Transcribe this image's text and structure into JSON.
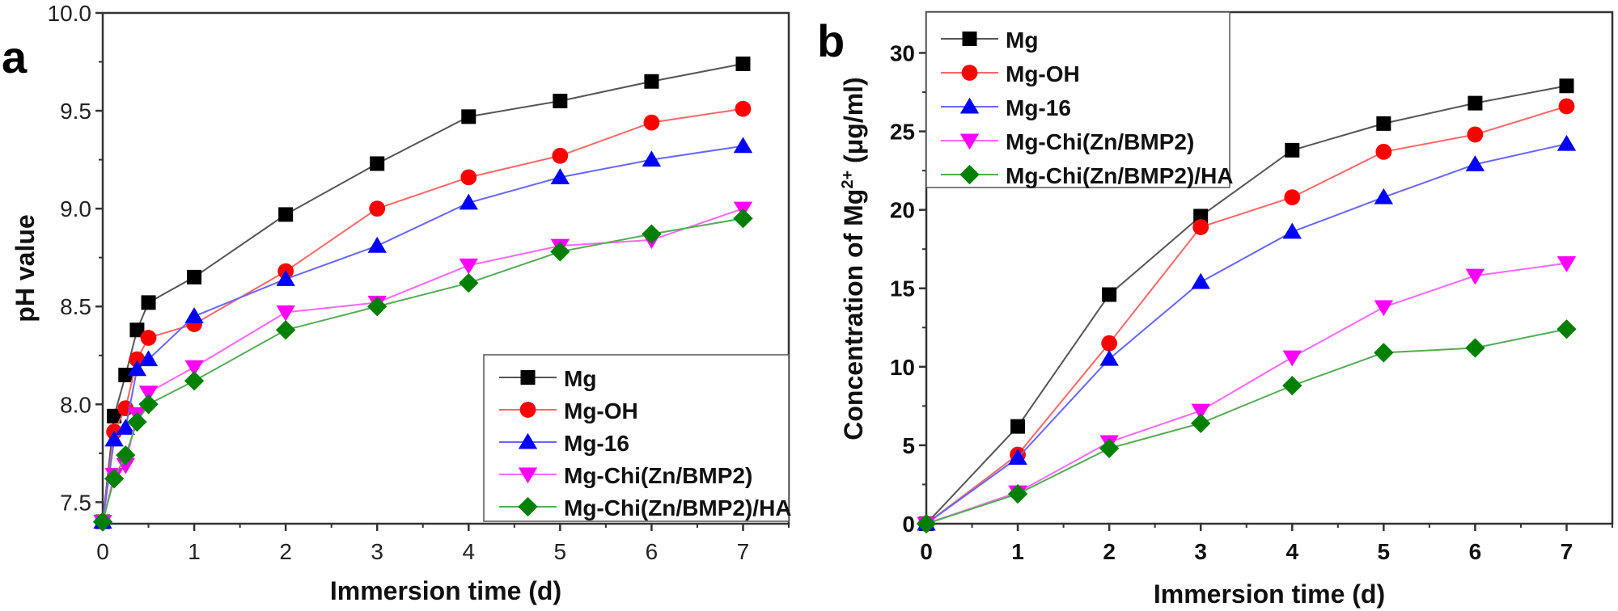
{
  "panels": [
    "a",
    "b"
  ],
  "series_styles": [
    {
      "name": "Mg",
      "line_color": "#555555",
      "marker_color": "#000000",
      "marker": "square"
    },
    {
      "name": "Mg-OH",
      "line_color": "#ff6666",
      "marker_color": "#ff0000",
      "marker": "circle"
    },
    {
      "name": "Mg-16",
      "line_color": "#6666ff",
      "marker_color": "#0000ff",
      "marker": "triangle-up"
    },
    {
      "name": "Mg-Chi(Zn/BMP2)",
      "line_color": "#ff66ff",
      "marker_color": "#ff00ff",
      "marker": "triangle-down"
    },
    {
      "name": "Mg-Chi(Zn/BMP2)/HA",
      "line_color": "#55aa55",
      "marker_color": "#008000",
      "marker": "diamond"
    }
  ],
  "chart_data": [
    {
      "panel_label": "a",
      "type": "line",
      "title": "",
      "xlabel": "Immersion time (d)",
      "ylabel": "pH value",
      "xlim": [
        0,
        7.5
      ],
      "ylim": [
        7.39,
        10.0
      ],
      "xticks": [
        0,
        1,
        2,
        3,
        4,
        5,
        6,
        7
      ],
      "xtick_labels": [
        "0",
        "1",
        "2",
        "3",
        "4",
        "5",
        "6",
        "7"
      ],
      "yticks": [
        7.5,
        8.0,
        8.5,
        9.0,
        9.5,
        10.0
      ],
      "ytick_labels": [
        "7.5",
        "8.0",
        "8.5",
        "9.0",
        "9.5",
        "10.0"
      ],
      "grid": false,
      "legend_position": "bottom-right",
      "x": [
        0,
        0.125,
        0.25,
        0.375,
        0.5,
        1,
        2,
        3,
        4,
        5,
        6,
        7
      ],
      "series": [
        {
          "name": "Mg",
          "values": [
            7.4,
            7.94,
            8.15,
            8.38,
            8.52,
            8.65,
            8.97,
            9.23,
            9.47,
            9.55,
            9.65,
            9.74
          ]
        },
        {
          "name": "Mg-OH",
          "values": [
            7.4,
            7.86,
            7.98,
            8.23,
            8.34,
            8.41,
            8.68,
            9.0,
            9.16,
            9.27,
            9.44,
            9.51
          ]
        },
        {
          "name": "Mg-16",
          "values": [
            7.4,
            7.82,
            7.88,
            8.18,
            8.23,
            8.45,
            8.64,
            8.81,
            9.03,
            9.16,
            9.25,
            9.32
          ]
        },
        {
          "name": "Mg-Chi(Zn/BMP2)",
          "values": [
            7.4,
            7.64,
            7.69,
            7.95,
            8.06,
            8.19,
            8.47,
            8.52,
            8.71,
            8.81,
            8.84,
            9.0
          ]
        },
        {
          "name": "Mg-Chi(Zn/BMP2)/HA",
          "values": [
            7.4,
            7.62,
            7.74,
            7.91,
            8.0,
            8.12,
            8.38,
            8.5,
            8.62,
            8.78,
            8.87,
            8.95
          ]
        }
      ]
    },
    {
      "panel_label": "b",
      "type": "line",
      "title": "",
      "xlabel": "Immersion time (d)",
      "ylabel": "Concentration of Mg",
      "ylabel_superscript": "2+",
      "ylabel_unit": " (μg/ml)",
      "xlim": [
        0,
        7.5
      ],
      "ylim": [
        0,
        32.6
      ],
      "xticks": [
        0,
        1,
        2,
        3,
        4,
        5,
        6,
        7
      ],
      "xtick_labels": [
        "0",
        "1",
        "2",
        "3",
        "4",
        "5",
        "6",
        "7"
      ],
      "yticks": [
        0,
        5,
        10,
        15,
        20,
        25,
        30
      ],
      "ytick_labels": [
        "0",
        "5",
        "10",
        "15",
        "20",
        "25",
        "30"
      ],
      "grid": false,
      "legend_position": "top-left",
      "x": [
        0,
        1,
        2,
        3,
        4,
        5,
        6,
        7
      ],
      "series": [
        {
          "name": "Mg",
          "values": [
            0,
            6.2,
            14.6,
            19.6,
            23.8,
            25.5,
            26.8,
            27.9
          ]
        },
        {
          "name": "Mg-OH",
          "values": [
            0,
            4.4,
            11.5,
            18.9,
            20.8,
            23.7,
            24.8,
            26.6
          ]
        },
        {
          "name": "Mg-16",
          "values": [
            0,
            4.2,
            10.5,
            15.4,
            18.6,
            20.8,
            22.9,
            24.2
          ]
        },
        {
          "name": "Mg-Chi(Zn/BMP2)",
          "values": [
            0,
            2.0,
            5.2,
            7.2,
            10.6,
            13.8,
            15.8,
            16.6
          ]
        },
        {
          "name": "Mg-Chi(Zn/BMP2)/HA",
          "values": [
            0,
            1.9,
            4.8,
            6.4,
            8.8,
            10.9,
            11.2,
            12.4
          ]
        }
      ]
    }
  ]
}
